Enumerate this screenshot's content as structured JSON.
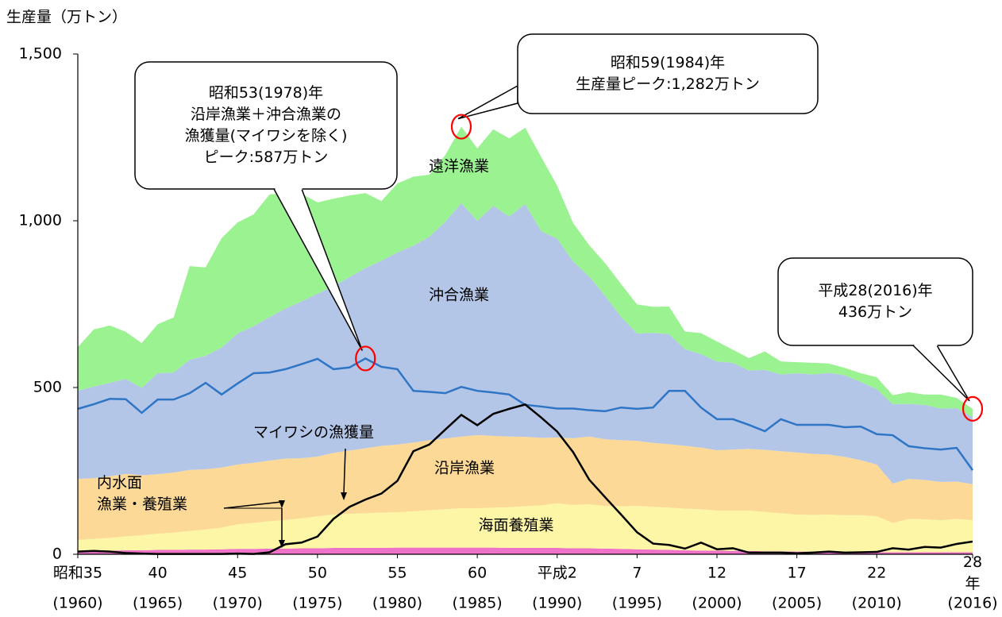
{
  "chart_data": {
    "type": "stacked_area",
    "ylabel": "生産量（万トン）",
    "ylim": [
      0,
      1500
    ],
    "yticks": [
      0,
      500,
      {
        "value": 1000,
        "label": "1,000"
      },
      {
        "value": 1500,
        "label": "1,500"
      }
    ],
    "xlim": [
      1960,
      2016
    ],
    "xticks": [
      {
        "value": 1960,
        "label": "昭和35",
        "sublabel": "(1960)"
      },
      {
        "value": 1965,
        "label": "40",
        "sublabel": "(1965)"
      },
      {
        "value": 1970,
        "label": "45",
        "sublabel": "(1970)"
      },
      {
        "value": 1975,
        "label": "50",
        "sublabel": "(1975)"
      },
      {
        "value": 1980,
        "label": "55",
        "sublabel": "(1980)"
      },
      {
        "value": 1985,
        "label": "60",
        "sublabel": "(1985)"
      },
      {
        "value": 1990,
        "label": "平成2",
        "sublabel": "(1990)"
      },
      {
        "value": 1995,
        "label": "7",
        "sublabel": "(1995)"
      },
      {
        "value": 2000,
        "label": "12",
        "sublabel": "(2000)"
      },
      {
        "value": 2005,
        "label": "17",
        "sublabel": "(2005)"
      },
      {
        "value": 2010,
        "label": "22",
        "sublabel": "(2010)"
      },
      {
        "value": 2016,
        "label": "28年",
        "sublabel": "(2016)"
      }
    ],
    "x": [
      1960,
      1961,
      1962,
      1963,
      1964,
      1965,
      1966,
      1967,
      1968,
      1969,
      1970,
      1971,
      1972,
      1973,
      1974,
      1975,
      1976,
      1977,
      1978,
      1979,
      1980,
      1981,
      1982,
      1983,
      1984,
      1985,
      1986,
      1987,
      1988,
      1989,
      1990,
      1991,
      1992,
      1993,
      1994,
      1995,
      1996,
      1997,
      1998,
      1999,
      2000,
      2001,
      2002,
      2003,
      2004,
      2005,
      2006,
      2007,
      2008,
      2009,
      2010,
      2011,
      2012,
      2013,
      2014,
      2015,
      2016
    ],
    "series": [
      {
        "name": "内水面\n漁業・養殖業",
        "color": "#ee72c8",
        "values": [
          10,
          11,
          11,
          12,
          12,
          13,
          13,
          14,
          14,
          15,
          16,
          16,
          17,
          17,
          18,
          18,
          19,
          19,
          19,
          19,
          20,
          20,
          20,
          20,
          20,
          20,
          20,
          19,
          19,
          19,
          19,
          18,
          18,
          17,
          16,
          15,
          14,
          13,
          12,
          11,
          11,
          10,
          10,
          9,
          9,
          8,
          8,
          7,
          7,
          7,
          6,
          6,
          6,
          6,
          6,
          6,
          6
        ]
      },
      {
        "name": "海面養殖業",
        "color": "#fdf6a6",
        "values": [
          33,
          35,
          38,
          42,
          45,
          49,
          52,
          56,
          60,
          65,
          74,
          78,
          82,
          86,
          90,
          96,
          100,
          102,
          104,
          106,
          106,
          109,
          112,
          115,
          118,
          118,
          120,
          122,
          125,
          128,
          134,
          130,
          132,
          128,
          128,
          130,
          128,
          127,
          125,
          124,
          120,
          121,
          121,
          118,
          114,
          111,
          110,
          112,
          110,
          110,
          108,
          88,
          100,
          99,
          96,
          100,
          96
        ]
      },
      {
        "name": "沿岸漁業",
        "color": "#fcd996",
        "values": [
          183,
          182,
          185,
          187,
          180,
          178,
          180,
          183,
          181,
          180,
          179,
          180,
          182,
          184,
          180,
          179,
          185,
          190,
          195,
          200,
          203,
          206,
          210,
          212,
          215,
          219,
          215,
          212,
          208,
          202,
          197,
          200,
          203,
          200,
          198,
          195,
          192,
          190,
          188,
          185,
          181,
          183,
          185,
          186,
          186,
          186,
          183,
          180,
          175,
          165,
          155,
          118,
          120,
          118,
          115,
          112,
          108
        ]
      },
      {
        "name": "沖合漁業",
        "color": "#b4c6e7",
        "values": [
          264,
          275,
          280,
          285,
          262,
          303,
          300,
          330,
          340,
          360,
          393,
          410,
          430,
          450,
          470,
          488,
          500,
          520,
          540,
          555,
          576,
          590,
          610,
          650,
          700,
          643,
          690,
          660,
          698,
          620,
          596,
          530,
          480,
          430,
          370,
          322,
          330,
          330,
          290,
          280,
          266,
          260,
          235,
          240,
          230,
          238,
          238,
          245,
          245,
          235,
          226,
          238,
          225,
          225,
          220,
          220,
          202
        ]
      },
      {
        "name": "遠洋漁業",
        "color": "#9af290",
        "values": [
          131,
          171,
          172,
          141,
          134,
          147,
          165,
          281,
          265,
          328,
          333,
          335,
          368,
          346,
          323,
          274,
          262,
          245,
          225,
          179,
          207,
          207,
          186,
          200,
          229,
          217,
          229,
          234,
          229,
          222,
          159,
          115,
          94,
          98,
          98,
          87,
          78,
          83,
          53,
          63,
          60,
          39,
          37,
          55,
          39,
          33,
          35,
          28,
          22,
          26,
          36,
          27,
          35,
          31,
          42,
          31,
          24
        ]
      }
    ],
    "lines": [
      {
        "color": "#2e75c6",
        "values": [
          436,
          450,
          466,
          465,
          424,
          464,
          464,
          483,
          514,
          479,
          512,
          543,
          545,
          555,
          570,
          586,
          555,
          560,
          587,
          562,
          555,
          490,
          487,
          483,
          502,
          490,
          485,
          479,
          448,
          443,
          437,
          437,
          432,
          429,
          440,
          436,
          440,
          490,
          490,
          440,
          405,
          405,
          388,
          369,
          405,
          388,
          388,
          388,
          381,
          383,
          360,
          357,
          324,
          318,
          314,
          319,
          252
        ]
      },
      {
        "name": "マイワシの漁獲量",
        "color": "#000000",
        "values": [
          8,
          10,
          8,
          4,
          2,
          1,
          1,
          1,
          1,
          1,
          2,
          1,
          6,
          30,
          35,
          53,
          106,
          142,
          164,
          182,
          220,
          309,
          329,
          374,
          418,
          387,
          421,
          436,
          449,
          410,
          368,
          306,
          224,
          171,
          119,
          66,
          32,
          28,
          17,
          35,
          15,
          18,
          5,
          5,
          5,
          3,
          5,
          8,
          5,
          6,
          7,
          18,
          14,
          22,
          20,
          31,
          38
        ]
      }
    ],
    "annotations": [
      {
        "text": "昭和53(1978)年\n沿岸漁業＋沖合漁業の\n漁獲量(マイワシを除く)\nピーク:587万トン",
        "x": 1978,
        "y": 587
      },
      {
        "text": "昭和59(1984)年\n生産量ピーク:1,282万トン",
        "x": 1984,
        "y": 1282
      },
      {
        "text": "平成28(2016)年\n436万トン",
        "x": 2016,
        "y": 436
      }
    ]
  }
}
